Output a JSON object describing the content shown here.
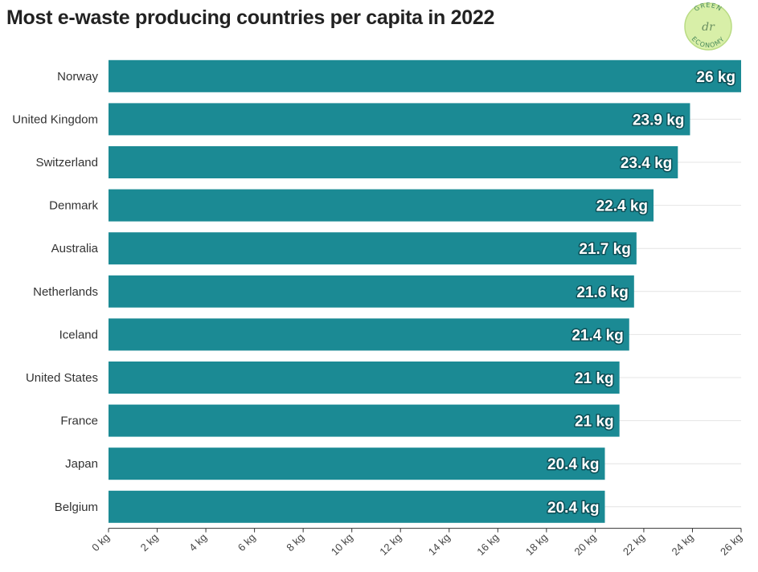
{
  "chart_data": {
    "type": "bar",
    "orientation": "horizontal",
    "title": "Most e-waste producing countries per capita in 2022",
    "categories": [
      "Norway",
      "United Kingdom",
      "Switzerland",
      "Denmark",
      "Australia",
      "Netherlands",
      "Iceland",
      "United States",
      "France",
      "Japan",
      "Belgium"
    ],
    "values": [
      26,
      23.9,
      23.4,
      22.4,
      21.7,
      21.6,
      21.4,
      21,
      21,
      20.4,
      20.4
    ],
    "value_labels": [
      "26 kg",
      "23.9 kg",
      "23.4 kg",
      "22.4 kg",
      "21.7 kg",
      "21.6 kg",
      "21.4 kg",
      "21 kg",
      "21 kg",
      "20.4 kg",
      "20.4 kg"
    ],
    "xlim": [
      0,
      26
    ],
    "xticks": [
      0,
      2,
      4,
      6,
      8,
      10,
      12,
      14,
      16,
      18,
      20,
      22,
      24,
      26
    ],
    "xtick_labels": [
      "0 kg",
      "2 kg",
      "4 kg",
      "6 kg",
      "8 kg",
      "10 kg",
      "12 kg",
      "14 kg",
      "16 kg",
      "18 kg",
      "20 kg",
      "22 kg",
      "24 kg",
      "26 kg"
    ],
    "xlabel": "",
    "ylabel": "",
    "grid": true,
    "bar_color": "#1b8a94"
  },
  "logo": {
    "top_text": "GREEN",
    "bottom_text": "ECONOMY",
    "center_text": "dr",
    "color": "#d8efa8"
  }
}
